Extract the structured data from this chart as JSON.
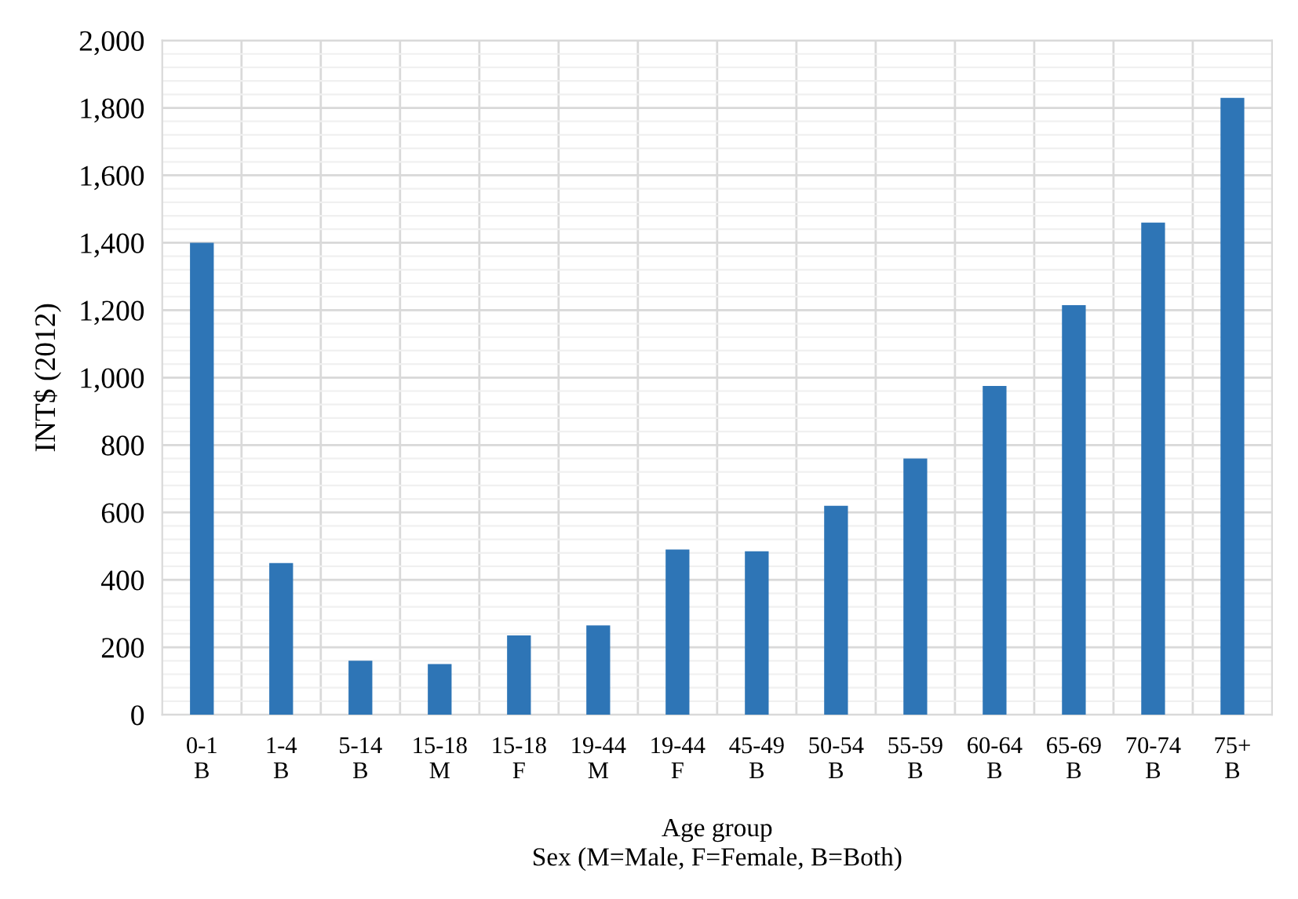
{
  "chart_data": {
    "type": "bar",
    "categories": [
      "0-1\nB",
      "1-4\nB",
      "5-14\nB",
      "15-18\nM",
      "15-18\nF",
      "19-44\nM",
      "19-44\nF",
      "45-49\nB",
      "50-54\nB",
      "55-59\nB",
      "60-64\nB",
      "65-69\nB",
      "70-74\nB",
      "75+\nB"
    ],
    "values": [
      1400,
      450,
      160,
      150,
      235,
      265,
      490,
      485,
      620,
      760,
      975,
      1215,
      1460,
      1830
    ],
    "color": "#2e75b6",
    "xlabel": "Age group\nSex (M=Male, F=Female, B=Both)",
    "ylabel": "INT$ (2012)",
    "ylim": [
      0,
      2000
    ],
    "yticks": [
      0,
      200,
      400,
      600,
      800,
      {
        "value": 1000,
        "label": "1,000"
      },
      {
        "value": 1200,
        "label": "1,200"
      },
      {
        "value": 1400,
        "label": "1,400"
      },
      {
        "value": 1600,
        "label": "1,600"
      },
      {
        "value": 1800,
        "label": "1,800"
      },
      {
        "value": 2000,
        "label": "2,000"
      }
    ],
    "grid": true
  }
}
